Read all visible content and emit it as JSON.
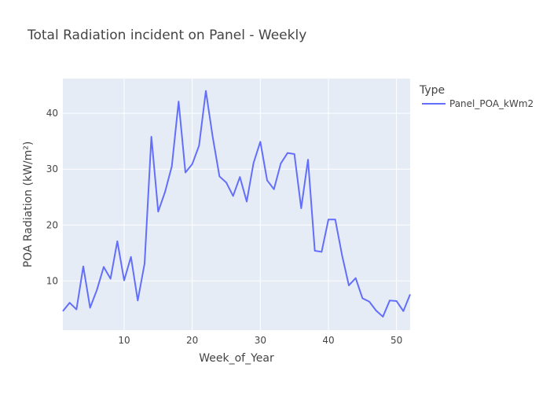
{
  "chart_data": {
    "type": "line",
    "title": "Total Radiation incident on Panel - Weekly",
    "xlabel": "Week_of_Year",
    "ylabel": "POA Radiation (kW/m²)",
    "legend_title": "Type",
    "legend_placement": "top-right",
    "xlim": [
      1,
      52
    ],
    "ylim": [
      1.2,
      46.2
    ],
    "xticks": [
      10,
      20,
      30,
      40,
      50
    ],
    "yticks": [
      10,
      20,
      30,
      40
    ],
    "grid": true,
    "series": [
      {
        "name": "Panel_POA_kWm2",
        "color": "#636efa",
        "x": [
          1,
          2,
          3,
          4,
          5,
          6,
          7,
          8,
          9,
          10,
          11,
          12,
          13,
          14,
          15,
          16,
          17,
          18,
          19,
          20,
          21,
          22,
          23,
          24,
          25,
          26,
          27,
          28,
          29,
          30,
          31,
          32,
          33,
          34,
          35,
          36,
          37,
          38,
          39,
          40,
          41,
          42,
          43,
          44,
          45,
          46,
          47,
          48,
          49,
          50,
          51,
          52
        ],
        "y": [
          4.6,
          6.1,
          4.9,
          12.6,
          5.2,
          8.4,
          12.5,
          10.4,
          17.1,
          10.1,
          14.3,
          6.5,
          13.1,
          35.8,
          22.4,
          25.9,
          30.5,
          42.1,
          29.4,
          30.9,
          34.2,
          44.0,
          35.8,
          28.7,
          27.6,
          25.2,
          28.6,
          24.2,
          31.1,
          34.9,
          28.0,
          26.4,
          31.0,
          32.9,
          32.7,
          23.0,
          31.7,
          15.4,
          15.2,
          21.0,
          21.0,
          14.6,
          9.2,
          10.5,
          6.9,
          6.3,
          4.7,
          3.6,
          6.5,
          6.4,
          4.6,
          7.6
        ]
      }
    ]
  }
}
